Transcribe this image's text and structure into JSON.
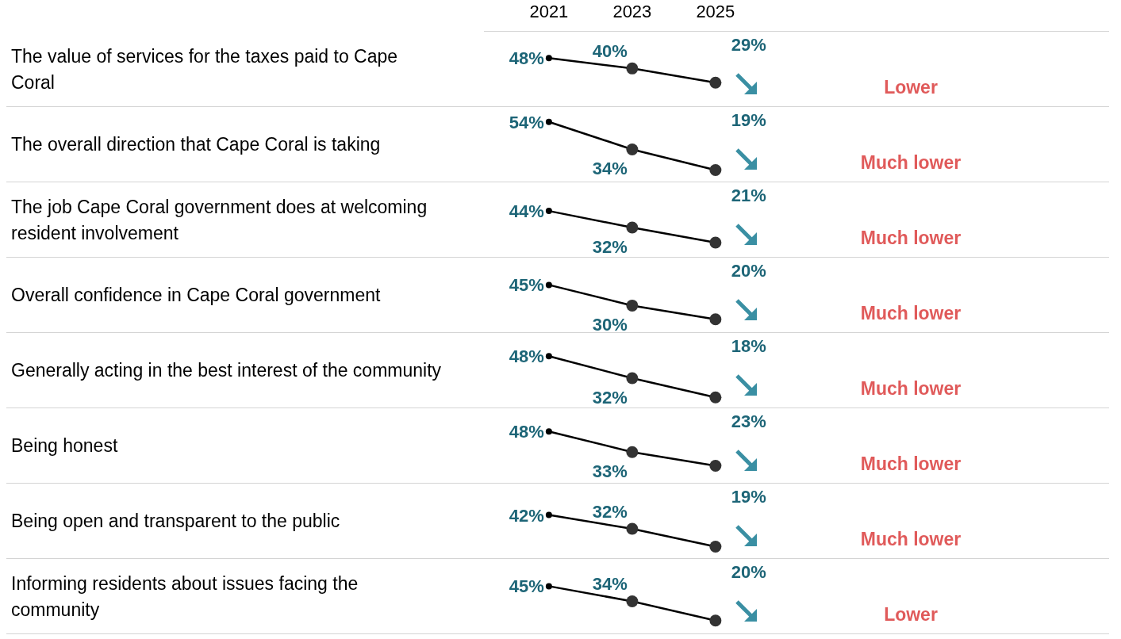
{
  "chart_data": [
    {
      "type": "line",
      "ylabel": "The value of services for the taxes paid to Cape Coral",
      "categories": [
        "2021",
        "2023",
        "2025"
      ],
      "values": [
        48,
        40,
        29
      ],
      "value_labels": [
        "48%",
        "40%",
        "29%"
      ],
      "color": "#000000",
      "marker": "circle",
      "tick_labels": "x",
      "annotations": [
        "Lower"
      ]
    },
    {
      "type": "line",
      "ylabel": "The overall direction that Cape Coral is taking",
      "categories": [
        "2021",
        "2023",
        "2025"
      ],
      "values": [
        54,
        34,
        19
      ],
      "value_labels": [
        "54%",
        "34%",
        "19%"
      ],
      "color": "#000000",
      "marker": "circle",
      "tick_labels": false,
      "annotations": [
        "Much lower"
      ]
    },
    {
      "type": "line",
      "ylabel": "The job Cape Coral government does at welcoming resident involvement",
      "categories": [
        "2021",
        "2023",
        "2025"
      ],
      "values": [
        44,
        32,
        21
      ],
      "value_labels": [
        "44%",
        "32%",
        "21%"
      ],
      "color": "#000000",
      "marker": "circle",
      "tick_labels": false,
      "annotations": [
        "Much lower"
      ]
    },
    {
      "type": "line",
      "ylabel": "Overall confidence in Cape Coral government",
      "categories": [
        "2021",
        "2023",
        "2025"
      ],
      "values": [
        45,
        30,
        20
      ],
      "value_labels": [
        "45%",
        "30%",
        "20%"
      ],
      "color": "#000000",
      "marker": "circle",
      "tick_labels": false,
      "annotations": [
        "Much lower"
      ]
    },
    {
      "type": "line",
      "ylabel": "Generally acting in the best interest of the community",
      "categories": [
        "2021",
        "2023",
        "2025"
      ],
      "values": [
        48,
        32,
        18
      ],
      "value_labels": [
        "48%",
        "32%",
        "18%"
      ],
      "color": "#000000",
      "marker": "circle",
      "tick_labels": false,
      "annotations": [
        "Much lower"
      ]
    },
    {
      "type": "line",
      "ylabel": "Being honest",
      "categories": [
        "2021",
        "2023",
        "2025"
      ],
      "values": [
        48,
        33,
        23
      ],
      "value_labels": [
        "48%",
        "33%",
        "23%"
      ],
      "color": "#000000",
      "marker": "circle",
      "tick_labels": false,
      "annotations": [
        "Much lower"
      ]
    },
    {
      "type": "line",
      "ylabel": "Being open and transparent to the public",
      "categories": [
        "2021",
        "2023",
        "2025"
      ],
      "values": [
        42,
        32,
        19
      ],
      "value_labels": [
        "42%",
        "32%",
        "19%"
      ],
      "color": "#000000",
      "marker": "circle",
      "tick_labels": false,
      "annotations": [
        "Much lower"
      ]
    },
    {
      "type": "line",
      "ylabel": "Informing residents about issues facing the community",
      "categories": [
        "2021",
        "2023",
        "2025"
      ],
      "values": [
        45,
        34,
        20
      ],
      "value_labels": [
        "45%",
        "34%",
        "20%"
      ],
      "color": "#000000",
      "marker": "circle",
      "tick_labels": false,
      "annotations": [
        "Lower"
      ]
    }
  ]
}
